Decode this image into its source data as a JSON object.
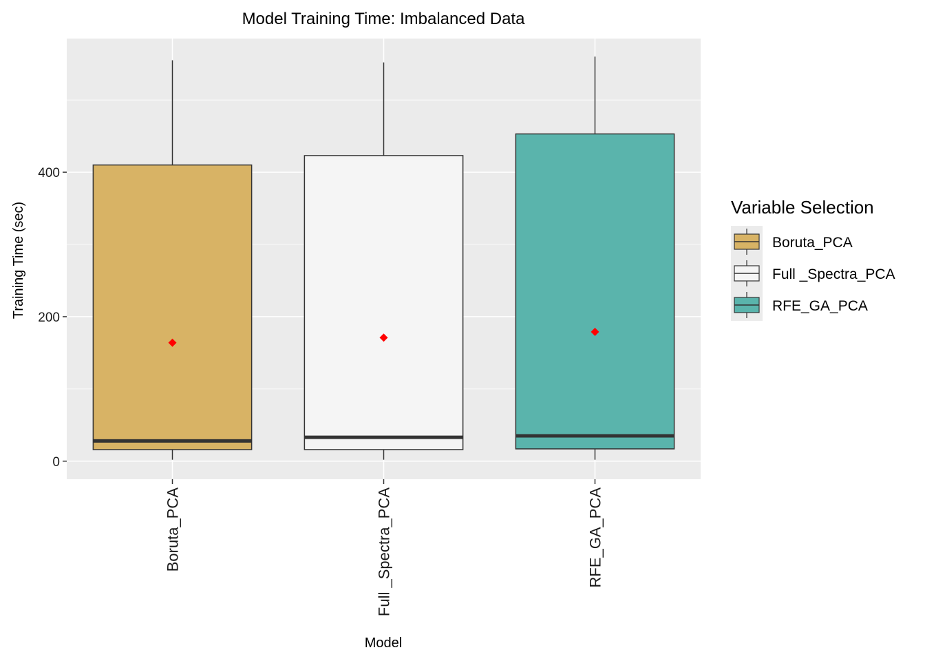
{
  "chart_data": {
    "type": "boxplot",
    "title": "Model Training Time: Imbalanced Data",
    "xlabel": "Model",
    "ylabel": "Training Time (sec)",
    "categories": [
      "Boruta_PCA",
      "Full _Spectra_PCA",
      "RFE_GA_PCA"
    ],
    "x_tick_labels": [
      "Boruta_PCA",
      "Full _Spectra_PCA",
      "RFE_GA_PCA"
    ],
    "ylim": [
      -25,
      585
    ],
    "y_ticks": [
      0,
      200,
      400
    ],
    "y_tick_labels": [
      "0",
      "200",
      "400"
    ],
    "grid": true,
    "legend": {
      "title": "Variable Selection",
      "position": "right",
      "entries": [
        "Boruta_PCA",
        "Full _Spectra_PCA",
        "RFE_GA_PCA"
      ]
    },
    "series": [
      {
        "name": "Boruta_PCA",
        "color": "#D8B365",
        "min": 2,
        "q1": 16,
        "median": 28,
        "q3": 410,
        "max": 555,
        "mean": 164
      },
      {
        "name": "Full _Spectra_PCA",
        "color": "#F5F5F5",
        "min": 2,
        "q1": 16,
        "median": 33,
        "q3": 423,
        "max": 552,
        "mean": 171
      },
      {
        "name": "RFE_GA_PCA",
        "color": "#5AB4AC",
        "min": 2,
        "q1": 17,
        "median": 35,
        "q3": 453,
        "max": 560,
        "mean": 179
      }
    ],
    "mean_marker_color": "#FF0000"
  }
}
